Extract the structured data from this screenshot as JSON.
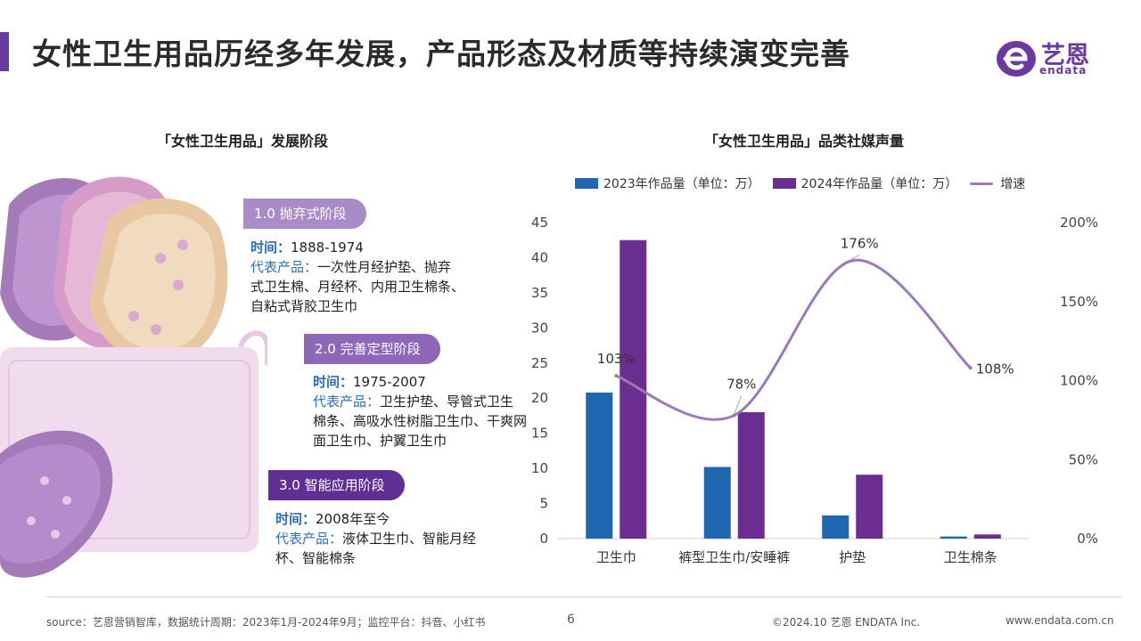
{
  "header": {
    "title": "女性卫生用品历经多年发展，产品形态及材质等持续演变完善",
    "logo_text": "艺恩",
    "logo_sub": "endata"
  },
  "left_panel": {
    "subtitle": "「女性卫生用品」发展阶段",
    "stages": [
      {
        "label": "1.0 抛弃式阶段",
        "time_label": "时间：",
        "time": "1888-1974",
        "product_label": "代表产品：",
        "products": "一次性月经护垫、抛弃式卫生棉、月经杯、内用卫生棉条、自粘式背胶卫生巾"
      },
      {
        "label": "2.0 完善定型阶段",
        "time_label": "时间：",
        "time": "1975-2007",
        "product_label": "代表产品：",
        "products": "卫生护垫、导管式卫生棉条、高吸水性树脂卫生巾、干爽网面卫生巾、护翼卫生巾"
      },
      {
        "label": "3.0 智能应用阶段",
        "time_label": "时间：",
        "time": "2008年至今",
        "product_label": "代表产品：",
        "products": "液体卫生巾、智能月经杯、智能棉条"
      }
    ]
  },
  "right_panel": {
    "subtitle": "「女性卫生用品」品类社媒声量"
  },
  "chart_data": {
    "type": "bar",
    "title": "「女性卫生用品」品类社媒声量",
    "categories": [
      "卫生巾",
      "裤型卫生巾/安睡裤",
      "护垫",
      "卫生棉条"
    ],
    "series": [
      {
        "name": "2023年作品量（单位：万）",
        "values": [
          20.8,
          10.2,
          3.3,
          0.3
        ],
        "color": "#1f67b1"
      },
      {
        "name": "2024年作品量（单位：万）",
        "values": [
          42.5,
          18.0,
          9.1,
          0.6
        ],
        "color": "#6a2d90"
      }
    ],
    "line_series": {
      "name": "增速",
      "values": [
        103,
        78,
        176,
        108
      ],
      "labels": [
        "103%",
        "78%",
        "176%",
        "108%"
      ],
      "color": "#9b7ab8"
    },
    "y_left": {
      "lim": [
        0,
        45
      ],
      "ticks": [
        "0",
        "5",
        "10",
        "15",
        "20",
        "25",
        "30",
        "35",
        "40",
        "45"
      ]
    },
    "y_right": {
      "lim": [
        0,
        200
      ],
      "ticks": [
        "0%",
        "50%",
        "100%",
        "150%",
        "200%"
      ]
    },
    "legend_position": "top"
  },
  "footer": {
    "source": "source：艺恩营销智库，数据统计周期：2023年1月-2024年9月；监控平台：抖音、小红书",
    "page": "6",
    "copyright": "©2024.10 艺恩 ENDATA Inc.",
    "website": "www.endata.com.cn"
  },
  "colors": {
    "accent": "#6b3aa0",
    "blue": "#1f67b1",
    "purple": "#6a2d90",
    "line": "#9b7ab8"
  }
}
